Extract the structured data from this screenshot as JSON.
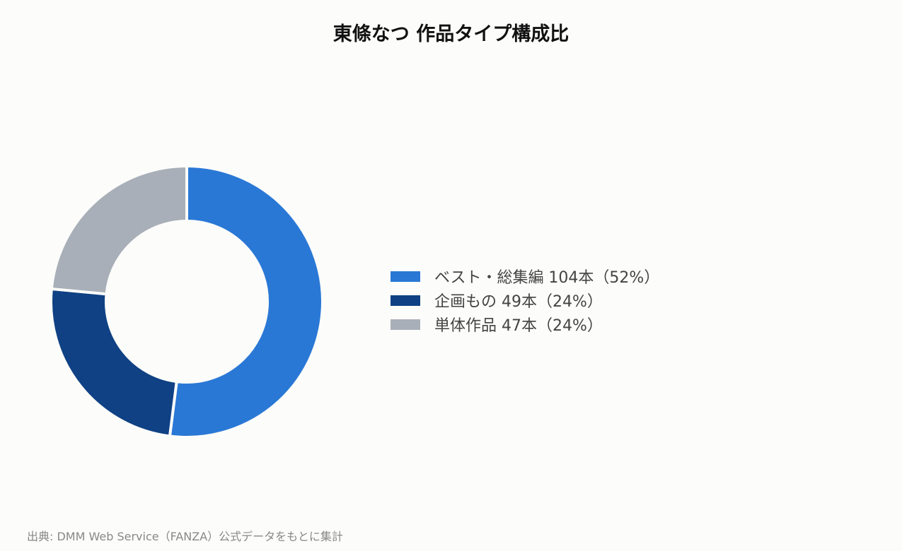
{
  "chart_data": {
    "type": "pie",
    "variant": "donut",
    "title": "東條なつ 作品タイプ構成比",
    "categories": [
      "ベスト・総集編",
      "企画もの",
      "単体作品"
    ],
    "values": [
      104,
      49,
      47
    ],
    "unit": "本",
    "percentages": [
      52,
      24,
      24
    ],
    "colors": [
      "#2a78d6",
      "#0f4184",
      "#a8afb8"
    ],
    "legend": {
      "placement": "right",
      "entries": [
        "ベスト・総集編 104本（52%）",
        "企画もの 49本（24%）",
        "単体作品 47本（24%）"
      ]
    }
  },
  "source_note": "出典: DMM Web Service（FANZA）公式データをもとに集計"
}
